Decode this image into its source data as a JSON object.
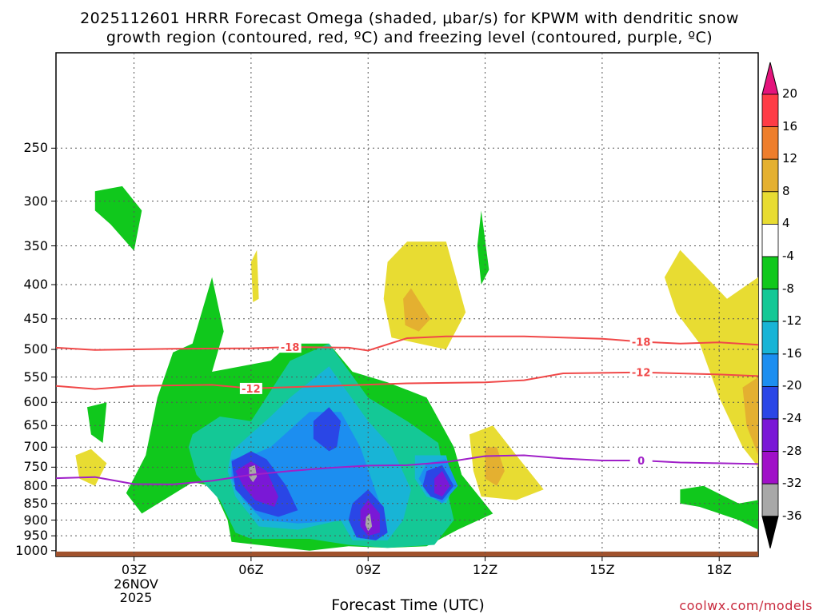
{
  "title_line_1": "2025112601 HRRR Forecast Omega (shaded, μbar/s) for KPWM with dendritic snow",
  "title_line_2": "growth region (contoured, red, ºC) and freezing level (contoured, purple, ºC)",
  "x_axis_title": "Forecast Time (UTC)",
  "credit": "coolwx.com/models",
  "date_label": [
    "26NOV",
    "2025"
  ],
  "colorbar": {
    "labels": [
      "20",
      "16",
      "12",
      "8",
      "4",
      "-4",
      "-8",
      "-12",
      "-16",
      "-20",
      "-24",
      "-28",
      "-32",
      "-36"
    ],
    "colors": [
      "#ff3c46",
      "#ee7e2c",
      "#e4b030",
      "#e8dc32",
      "#ffffff",
      "#10c81c",
      "#14c896",
      "#18b4d6",
      "#1c8ef0",
      "#2a46e6",
      "#7a18d6",
      "#a010c8",
      "#a8a8a8"
    ],
    "top_arrow_color": "#e4147c",
    "bottom_arrow_color": "#000000"
  },
  "chart_data": {
    "type": "heatmap",
    "title": "2025112601 HRRR Forecast Omega (shaded, μbar/s) for KPWM with dendritic snow growth region (contoured, red, ºC) and freezing level (contoured, purple, ºC)",
    "xlabel": "Forecast Time (UTC)",
    "ylabel": "",
    "x_ticks": [
      "03Z",
      "06Z",
      "09Z",
      "12Z",
      "15Z",
      "18Z"
    ],
    "x_tick_hours": [
      3,
      6,
      9,
      12,
      15,
      18
    ],
    "x_range_hours": [
      1,
      19
    ],
    "y_ticks": [
      250,
      300,
      350,
      400,
      450,
      500,
      550,
      600,
      650,
      700,
      750,
      800,
      850,
      900,
      950,
      1000
    ],
    "y_range_hpa": [
      180,
      1020
    ],
    "y_scale": "log-pressure",
    "grid": true,
    "ground_color": "#a0522d",
    "contours": [
      {
        "color": "#f04848",
        "label": "-18",
        "label_hours": [
          7,
          16
        ],
        "points": [
          [
            1,
            497
          ],
          [
            2,
            501
          ],
          [
            4,
            499
          ],
          [
            6,
            498
          ],
          [
            7,
            496
          ],
          [
            8.5,
            497
          ],
          [
            9,
            502
          ],
          [
            10,
            481
          ],
          [
            11,
            478
          ],
          [
            13,
            478
          ],
          [
            15,
            482
          ],
          [
            16,
            487
          ],
          [
            17,
            490
          ],
          [
            18,
            488
          ],
          [
            19,
            492
          ]
        ]
      },
      {
        "color": "#f04848",
        "label": "-12",
        "label_hours": [
          6,
          16
        ],
        "points": [
          [
            1,
            567
          ],
          [
            2,
            573
          ],
          [
            3,
            567
          ],
          [
            5,
            565
          ],
          [
            6,
            572
          ],
          [
            8,
            567
          ],
          [
            10,
            562
          ],
          [
            12,
            560
          ],
          [
            13,
            556
          ],
          [
            14,
            543
          ],
          [
            16,
            541
          ],
          [
            18,
            545
          ],
          [
            19,
            548
          ]
        ]
      },
      {
        "color": "#a020c8",
        "label": "0",
        "label_hours": [
          16
        ],
        "points": [
          [
            1,
            779
          ],
          [
            2,
            776
          ],
          [
            3,
            795
          ],
          [
            4,
            796
          ],
          [
            5,
            786
          ],
          [
            6,
            770
          ],
          [
            7,
            760
          ],
          [
            8,
            752
          ],
          [
            9,
            746
          ],
          [
            10,
            745
          ],
          [
            11,
            737
          ],
          [
            12,
            722
          ],
          [
            13,
            720
          ],
          [
            14,
            728
          ],
          [
            15,
            733
          ],
          [
            16,
            733
          ],
          [
            17,
            738
          ],
          [
            18,
            740
          ],
          [
            19,
            742
          ]
        ]
      }
    ],
    "omega_regions": [
      {
        "color": "#10c81c",
        "points": [
          [
            2,
            290
          ],
          [
            2.7,
            285
          ],
          [
            3.2,
            310
          ],
          [
            3,
            356
          ],
          [
            2.4,
            325
          ],
          [
            2,
            310
          ]
        ]
      },
      {
        "color": "#10c81c",
        "points": [
          [
            11.9,
            310
          ],
          [
            12.1,
            380
          ],
          [
            11.9,
            400
          ],
          [
            11.8,
            350
          ]
        ]
      },
      {
        "color": "#10c81c",
        "points": [
          [
            1.8,
            610
          ],
          [
            2.3,
            600
          ],
          [
            2.2,
            690
          ],
          [
            1.9,
            670
          ]
        ]
      },
      {
        "color": "#10c81c",
        "points": [
          [
            17,
            810
          ],
          [
            17.6,
            800
          ],
          [
            18.5,
            850
          ],
          [
            19,
            840
          ],
          [
            19,
            930
          ],
          [
            18.5,
            900
          ],
          [
            17.5,
            860
          ],
          [
            17,
            850
          ]
        ]
      },
      {
        "color": "#10c81c",
        "points": [
          [
            4,
            505
          ],
          [
            4.5,
            490
          ],
          [
            5,
            390
          ],
          [
            5.3,
            470
          ],
          [
            5,
            540
          ],
          [
            6.5,
            520
          ],
          [
            7,
            490
          ],
          [
            8,
            490
          ],
          [
            8.6,
            540
          ],
          [
            9.5,
            560
          ],
          [
            10.5,
            590
          ],
          [
            11.2,
            700
          ],
          [
            11.4,
            770
          ],
          [
            12.2,
            880
          ],
          [
            11.3,
            930
          ],
          [
            10.5,
            985
          ],
          [
            9.5,
            990
          ],
          [
            8.5,
            985
          ],
          [
            7.5,
            1000
          ],
          [
            5.5,
            970
          ],
          [
            5.4,
            900
          ],
          [
            5,
            800
          ],
          [
            4.5,
            790
          ],
          [
            3.2,
            880
          ],
          [
            2.8,
            820
          ],
          [
            3.3,
            720
          ],
          [
            3.6,
            590
          ],
          [
            4,
            505
          ]
        ]
      },
      {
        "color": "#14c896",
        "points": [
          [
            4.5,
            670
          ],
          [
            5.2,
            630
          ],
          [
            6,
            640
          ],
          [
            7,
            520
          ],
          [
            8,
            490
          ],
          [
            9,
            590
          ],
          [
            10,
            640
          ],
          [
            10.8,
            690
          ],
          [
            11,
            800
          ],
          [
            11.2,
            900
          ],
          [
            10.7,
            980
          ],
          [
            9.5,
            990
          ],
          [
            8.5,
            980
          ],
          [
            7.5,
            960
          ],
          [
            6,
            960
          ],
          [
            5.6,
            940
          ],
          [
            5.2,
            840
          ],
          [
            4.6,
            770
          ],
          [
            4.4,
            700
          ]
        ]
      },
      {
        "color": "#18b4d6",
        "points": [
          [
            5.5,
            710
          ],
          [
            6.5,
            630
          ],
          [
            7,
            590
          ],
          [
            8,
            530
          ],
          [
            9,
            640
          ],
          [
            9.6,
            700
          ],
          [
            10.1,
            810
          ],
          [
            9.9,
            900
          ],
          [
            9.5,
            965
          ],
          [
            8.6,
            965
          ],
          [
            8.3,
            900
          ],
          [
            7.2,
            930
          ],
          [
            6.2,
            920
          ],
          [
            5.6,
            830
          ],
          [
            5.4,
            760
          ]
        ]
      },
      {
        "color": "#18b4d6",
        "points": [
          [
            10.2,
            720
          ],
          [
            11,
            720
          ],
          [
            11.2,
            800
          ],
          [
            11,
            850
          ],
          [
            10.5,
            830
          ],
          [
            10.2,
            780
          ]
        ]
      },
      {
        "color": "#1c8ef0",
        "points": [
          [
            5.5,
            730
          ],
          [
            6,
            720
          ],
          [
            6.5,
            700
          ],
          [
            7.5,
            620
          ],
          [
            8.3,
            620
          ],
          [
            8.8,
            700
          ],
          [
            9.3,
            850
          ],
          [
            9.2,
            950
          ],
          [
            8.8,
            960
          ],
          [
            8.6,
            900
          ],
          [
            7.2,
            910
          ],
          [
            6.3,
            900
          ],
          [
            5.8,
            840
          ],
          [
            5.5,
            780
          ]
        ]
      },
      {
        "color": "#1c8ef0",
        "points": [
          [
            10.5,
            740
          ],
          [
            11,
            730
          ],
          [
            11.3,
            800
          ],
          [
            10.9,
            850
          ],
          [
            10.5,
            820
          ],
          [
            10.3,
            780
          ]
        ]
      },
      {
        "color": "#2a46e6",
        "points": [
          [
            5.5,
            735
          ],
          [
            6,
            710
          ],
          [
            6.4,
            730
          ],
          [
            6.9,
            800
          ],
          [
            7.2,
            870
          ],
          [
            6.7,
            890
          ],
          [
            6.1,
            870
          ],
          [
            5.6,
            810
          ]
        ]
      },
      {
        "color": "#2a46e6",
        "points": [
          [
            7.6,
            640
          ],
          [
            8,
            610
          ],
          [
            8.3,
            640
          ],
          [
            8.2,
            700
          ],
          [
            8,
            710
          ],
          [
            7.6,
            680
          ]
        ]
      },
      {
        "color": "#2a46e6",
        "points": [
          [
            8.6,
            850
          ],
          [
            9,
            810
          ],
          [
            9.4,
            860
          ],
          [
            9.5,
            940
          ],
          [
            9.2,
            965
          ],
          [
            8.7,
            955
          ],
          [
            8.5,
            900
          ]
        ]
      },
      {
        "color": "#2a46e6",
        "points": [
          [
            10.5,
            760
          ],
          [
            10.9,
            745
          ],
          [
            11.2,
            800
          ],
          [
            10.9,
            840
          ],
          [
            10.6,
            830
          ],
          [
            10.4,
            800
          ]
        ]
      },
      {
        "color": "#7a18d6",
        "points": [
          [
            5.6,
            760
          ],
          [
            6,
            735
          ],
          [
            6.4,
            760
          ],
          [
            6.7,
            830
          ],
          [
            6.6,
            860
          ],
          [
            6.1,
            840
          ],
          [
            5.8,
            800
          ]
        ]
      },
      {
        "color": "#7a18d6",
        "points": [
          [
            8.8,
            870
          ],
          [
            9,
            840
          ],
          [
            9.3,
            880
          ],
          [
            9.3,
            940
          ],
          [
            9,
            950
          ],
          [
            8.8,
            920
          ]
        ]
      },
      {
        "color": "#7a18d6",
        "points": [
          [
            10.7,
            780
          ],
          [
            10.9,
            760
          ],
          [
            11.1,
            800
          ],
          [
            10.9,
            830
          ],
          [
            10.7,
            820
          ]
        ]
      },
      {
        "color": "#a8a8a8",
        "points": [
          [
            5.95,
            750
          ],
          [
            6.1,
            745
          ],
          [
            6.15,
            775
          ],
          [
            6.05,
            790
          ],
          [
            5.95,
            775
          ]
        ]
      },
      {
        "color": "#a8a8a8",
        "points": [
          [
            8.95,
            890
          ],
          [
            9.05,
            880
          ],
          [
            9.1,
            920
          ],
          [
            9,
            935
          ],
          [
            8.93,
            915
          ]
        ]
      },
      {
        "color": "#e8dc32",
        "points": [
          [
            6,
            370
          ],
          [
            6.15,
            355
          ],
          [
            6.2,
            420
          ],
          [
            6.05,
            425
          ]
        ]
      },
      {
        "color": "#e8dc32",
        "points": [
          [
            1.5,
            720
          ],
          [
            1.9,
            705
          ],
          [
            2.3,
            740
          ],
          [
            2,
            800
          ],
          [
            1.6,
            780
          ]
        ]
      },
      {
        "color": "#e8dc32",
        "points": [
          [
            9.5,
            370
          ],
          [
            10,
            345
          ],
          [
            11,
            345
          ],
          [
            11.5,
            440
          ],
          [
            11,
            500
          ],
          [
            9.6,
            480
          ],
          [
            9.4,
            420
          ]
        ]
      },
      {
        "color": "#e8dc32",
        "points": [
          [
            11.6,
            670
          ],
          [
            12.2,
            650
          ],
          [
            12.8,
            720
          ],
          [
            13.5,
            810
          ],
          [
            12.8,
            840
          ],
          [
            11.9,
            830
          ],
          [
            11.7,
            760
          ]
        ]
      },
      {
        "color": "#e8dc32",
        "points": [
          [
            16.6,
            390
          ],
          [
            17,
            355
          ],
          [
            18.2,
            420
          ],
          [
            19,
            390
          ],
          [
            19,
            750
          ],
          [
            18.6,
            700
          ],
          [
            18,
            590
          ],
          [
            17.5,
            490
          ],
          [
            16.9,
            440
          ]
        ]
      },
      {
        "color": "#e4b030",
        "points": [
          [
            9.9,
            420
          ],
          [
            10.1,
            405
          ],
          [
            10.6,
            450
          ],
          [
            10.3,
            470
          ],
          [
            9.95,
            460
          ]
        ]
      },
      {
        "color": "#e4b030",
        "points": [
          [
            12,
            700
          ],
          [
            12.3,
            700
          ],
          [
            12.5,
            760
          ],
          [
            12.3,
            800
          ],
          [
            12,
            780
          ]
        ]
      },
      {
        "color": "#e4b030",
        "points": [
          [
            18.6,
            570
          ],
          [
            19,
            550
          ],
          [
            19,
            720
          ],
          [
            18.7,
            650
          ]
        ]
      }
    ]
  }
}
